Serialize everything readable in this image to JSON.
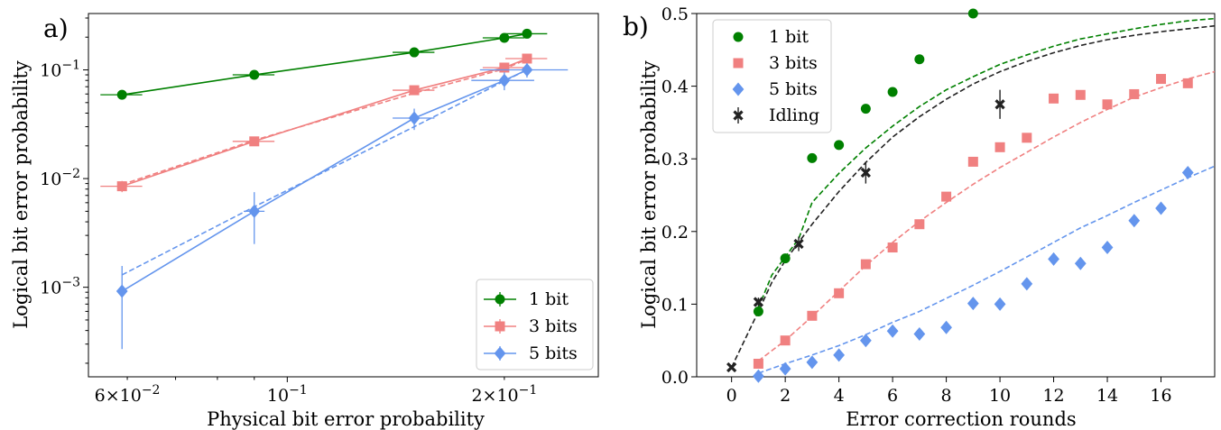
{
  "chart_data": [
    {
      "panel_label": "a)",
      "type": "line",
      "xlabel": "Physical bit error probability",
      "ylabel": "Logical bit error probability",
      "xscale": "log",
      "yscale": "log",
      "xlim": [
        0.053,
        0.27
      ],
      "ylim": [
        0.00015,
        0.33
      ],
      "x_ticks": [
        {
          "value": 0.06,
          "base": "6×10",
          "exp": "−2"
        },
        {
          "value": 0.1,
          "base": "10",
          "exp": "−1"
        },
        {
          "value": 0.2,
          "base": "2×10",
          "exp": "−1"
        }
      ],
      "y_ticks": [
        {
          "value": 0.001,
          "base": "10",
          "exp": "−3"
        },
        {
          "value": 0.01,
          "base": "10",
          "exp": "−2"
        },
        {
          "value": 0.1,
          "base": "10",
          "exp": "−1"
        }
      ],
      "legend_position": "lower right",
      "series": [
        {
          "name": "1 bit",
          "color": "#008000",
          "marker": "circle",
          "x": [
            0.059,
            0.09,
            0.15,
            0.2,
            0.215
          ],
          "y": [
            0.059,
            0.09,
            0.145,
            0.197,
            0.215
          ],
          "y_err": [
            0,
            0,
            0,
            0,
            0
          ]
        },
        {
          "name": "3 bits",
          "color": "#f08080",
          "marker": "square",
          "x": [
            0.059,
            0.09,
            0.15,
            0.2,
            0.215
          ],
          "y": [
            0.0085,
            0.022,
            0.065,
            0.105,
            0.127
          ],
          "y_err": [
            0.001,
            0.001,
            0.004,
            0.006,
            0.006
          ],
          "fit_y": [
            0.0088,
            0.0225,
            0.061,
            0.102,
            0.125
          ]
        },
        {
          "name": "5 bits",
          "color": "#6495ed",
          "marker": "diamond",
          "x": [
            0.059,
            0.09,
            0.15,
            0.2,
            0.215
          ],
          "y": [
            0.00092,
            0.005,
            0.036,
            0.08,
            0.1
          ],
          "y_err_low": [
            0.00065,
            0.0025,
            0.008,
            0.015,
            0.015
          ],
          "y_err_high": [
            0.00065,
            0.0025,
            0.008,
            0.015,
            0.015
          ],
          "x_err": [
            0.0,
            0.003,
            0.01,
            0.02,
            0.03
          ],
          "fit_y": [
            0.0013,
            0.0055,
            0.03,
            0.079,
            0.1
          ]
        }
      ]
    },
    {
      "panel_label": "b)",
      "type": "scatter",
      "xlabel": "Error correction rounds",
      "ylabel": "Logical bit error probability",
      "xlim": [
        -1.3,
        18.0
      ],
      "ylim": [
        0.0,
        0.5
      ],
      "x_ticks": [
        0,
        2,
        4,
        6,
        8,
        10,
        12,
        14,
        16
      ],
      "y_ticks": [
        "0.0",
        "0.1",
        "0.2",
        "0.3",
        "0.4",
        "0.5"
      ],
      "legend_position": "upper left",
      "series": [
        {
          "name": "1 bit",
          "color": "#008000",
          "marker": "circle",
          "x": [
            1,
            2,
            3,
            4,
            5,
            6,
            7,
            9
          ],
          "y": [
            0.09,
            0.163,
            0.301,
            0.319,
            0.369,
            0.392,
            0.437,
            0.5
          ]
        },
        {
          "name": "3 bits",
          "color": "#f08080",
          "marker": "square",
          "x": [
            1,
            2,
            3,
            4,
            5,
            6,
            7,
            8,
            9,
            10,
            11,
            12,
            13,
            14,
            15,
            16,
            17
          ],
          "y": [
            0.018,
            0.05,
            0.084,
            0.115,
            0.155,
            0.178,
            0.21,
            0.248,
            0.296,
            0.316,
            0.329,
            0.383,
            0.388,
            0.375,
            0.389,
            0.41,
            0.404
          ]
        },
        {
          "name": "5 bits",
          "color": "#6495ed",
          "marker": "diamond",
          "x": [
            1,
            2,
            3,
            4,
            5,
            6,
            7,
            8,
            9,
            10,
            11,
            12,
            13,
            14,
            15,
            16,
            17
          ],
          "y": [
            0.001,
            0.011,
            0.02,
            0.03,
            0.05,
            0.063,
            0.059,
            0.068,
            0.101,
            0.1,
            0.128,
            0.162,
            0.156,
            0.178,
            0.215,
            0.232,
            0.281
          ]
        },
        {
          "name": "Idling",
          "color": "#222222",
          "marker": "x",
          "x": [
            0,
            1,
            2.5,
            5,
            10
          ],
          "y": [
            0.013,
            0.103,
            0.183,
            0.281,
            0.375
          ],
          "y_err": [
            0.003,
            0.006,
            0.01,
            0.015,
            0.02
          ]
        }
      ],
      "fits": [
        {
          "color": "#008000",
          "x": [
            1,
            1.5,
            2,
            2.5,
            3,
            4,
            5,
            6,
            7,
            8,
            9,
            10,
            11,
            12,
            13,
            14,
            15,
            16,
            17,
            18
          ],
          "y": [
            0.095,
            0.14,
            0.165,
            0.19,
            0.24,
            0.28,
            0.315,
            0.345,
            0.372,
            0.395,
            0.413,
            0.43,
            0.443,
            0.455,
            0.465,
            0.472,
            0.479,
            0.485,
            0.49,
            0.493
          ]
        },
        {
          "color": "#222222",
          "x": [
            0,
            1,
            1.5,
            2,
            2.5,
            3,
            4,
            5,
            6,
            7,
            8,
            9,
            10,
            11,
            12,
            13,
            14,
            15,
            16,
            17,
            18
          ],
          "y": [
            0.013,
            0.09,
            0.13,
            0.16,
            0.185,
            0.21,
            0.255,
            0.295,
            0.33,
            0.358,
            0.382,
            0.403,
            0.42,
            0.434,
            0.446,
            0.456,
            0.464,
            0.47,
            0.475,
            0.479,
            0.483
          ]
        },
        {
          "color": "#f08080",
          "x": [
            1,
            2,
            3,
            4,
            5,
            6,
            7,
            8,
            9,
            10,
            11,
            12,
            13,
            14,
            15,
            16,
            17,
            18
          ],
          "y": [
            0.022,
            0.05,
            0.083,
            0.118,
            0.153,
            0.185,
            0.214,
            0.24,
            0.265,
            0.288,
            0.309,
            0.33,
            0.35,
            0.368,
            0.385,
            0.398,
            0.41,
            0.42
          ]
        },
        {
          "color": "#6495ed",
          "x": [
            1,
            2,
            3,
            4,
            5,
            6,
            7,
            8,
            9,
            10,
            11,
            12,
            13,
            14,
            15,
            16,
            17,
            18
          ],
          "y": [
            0.005,
            0.018,
            0.03,
            0.043,
            0.058,
            0.075,
            0.09,
            0.108,
            0.126,
            0.145,
            0.165,
            0.185,
            0.205,
            0.222,
            0.24,
            0.257,
            0.274,
            0.29
          ]
        }
      ]
    }
  ]
}
